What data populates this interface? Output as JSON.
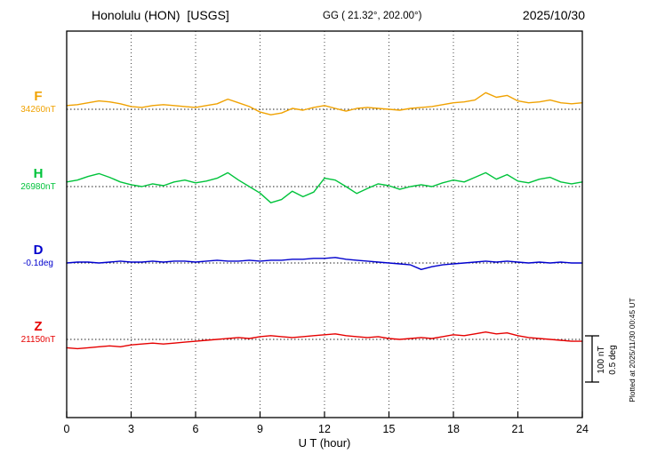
{
  "header": {
    "station_title": "Honolulu (HON)  [USGS]",
    "coords": "GG ( 21.32°, 202.00°)",
    "date": "2025/10/30"
  },
  "scale_bar": {
    "line1": "100 nT",
    "line2": "0.5 deg"
  },
  "footer_note": "Plotted at 2025/11/30 00:45 UT",
  "chart_data": {
    "type": "line",
    "title": "Honolulu (HON) [USGS] magnetogram 2025/10/30",
    "x_label": "U T (hour)",
    "x_range": [
      0,
      24
    ],
    "x_ticks": [
      0,
      3,
      6,
      9,
      12,
      15,
      18,
      21,
      24
    ],
    "step_hours": 0.5,
    "grid": "dotted-vertical-every-3h",
    "legend_position": "left-of-axis",
    "scale": {
      "nT_per_div": 100,
      "deg_per_div": 0.5
    },
    "series": [
      {
        "id": "F",
        "label": "F",
        "value_label": "34260nT",
        "baseline": 34260,
        "unit": "nT",
        "color": "#f0a202",
        "values": [
          8,
          10,
          14,
          18,
          16,
          12,
          6,
          4,
          8,
          10,
          8,
          6,
          4,
          8,
          12,
          22,
          14,
          6,
          -6,
          -12,
          -8,
          2,
          -2,
          4,
          8,
          2,
          -4,
          2,
          4,
          2,
          0,
          -2,
          2,
          4,
          6,
          10,
          14,
          16,
          20,
          36,
          26,
          30,
          18,
          14,
          16,
          20,
          14,
          12,
          14
        ]
      },
      {
        "id": "H",
        "label": "H",
        "value_label": "26980nT",
        "baseline": 26980,
        "unit": "nT",
        "color": "#00c33b",
        "values": [
          10,
          14,
          22,
          28,
          20,
          10,
          4,
          0,
          6,
          2,
          10,
          14,
          8,
          12,
          18,
          30,
          14,
          0,
          -14,
          -35,
          -28,
          -10,
          -22,
          -12,
          18,
          14,
          0,
          -15,
          -4,
          6,
          2,
          -6,
          0,
          4,
          0,
          8,
          14,
          10,
          20,
          30,
          16,
          26,
          12,
          8,
          16,
          20,
          10,
          6,
          10
        ]
      },
      {
        "id": "D",
        "label": "D",
        "value_label": "-0.1deg",
        "baseline": -0.1,
        "unit": "deg",
        "color": "#0000cd",
        "values": [
          0.0,
          0.01,
          0.01,
          0.0,
          0.01,
          0.02,
          0.01,
          0.01,
          0.02,
          0.01,
          0.02,
          0.02,
          0.01,
          0.02,
          0.03,
          0.02,
          0.02,
          0.03,
          0.02,
          0.03,
          0.03,
          0.04,
          0.04,
          0.05,
          0.05,
          0.06,
          0.04,
          0.03,
          0.02,
          0.01,
          0.0,
          -0.01,
          -0.02,
          -0.07,
          -0.04,
          -0.02,
          -0.01,
          0.0,
          0.01,
          0.02,
          0.01,
          0.02,
          0.01,
          0.0,
          0.01,
          0.0,
          0.01,
          0.0,
          0.0
        ]
      },
      {
        "id": "Z",
        "label": "Z",
        "value_label": "21150nT",
        "baseline": 21150,
        "unit": "nT",
        "color": "#e60000",
        "values": [
          -18,
          -20,
          -18,
          -16,
          -14,
          -16,
          -12,
          -10,
          -8,
          -10,
          -8,
          -6,
          -4,
          -2,
          0,
          2,
          4,
          2,
          6,
          8,
          6,
          4,
          6,
          8,
          10,
          12,
          8,
          6,
          4,
          6,
          2,
          0,
          2,
          4,
          2,
          6,
          10,
          8,
          12,
          16,
          12,
          14,
          8,
          4,
          2,
          0,
          -2,
          -4,
          -4
        ]
      }
    ]
  }
}
